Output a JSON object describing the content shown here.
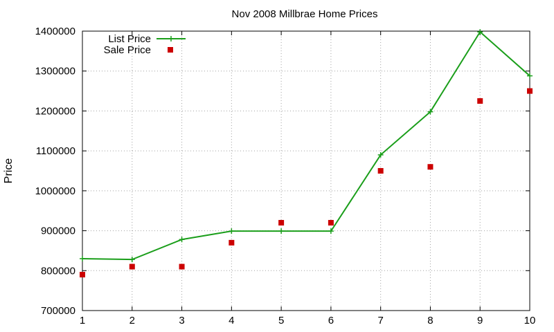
{
  "chart_data": {
    "type": "line",
    "title": "Nov 2008 Millbrae Home Prices",
    "xlabel": "",
    "ylabel": "Price",
    "xlim": [
      1,
      10
    ],
    "ylim": [
      700000,
      1400000
    ],
    "x_ticks": [
      "1",
      "2",
      "3",
      "4",
      "5",
      "6",
      "7",
      "8",
      "9",
      "10"
    ],
    "y_ticks": [
      "700000",
      "800000",
      "900000",
      "1000000",
      "1100000",
      "1200000",
      "1300000",
      "1400000"
    ],
    "grid": true,
    "legend_position": "top-left",
    "series": [
      {
        "name": "List Price",
        "style": "line-with-plus-markers",
        "color": "#1a9e1a",
        "x": [
          1,
          2,
          3,
          4,
          5,
          6,
          7,
          8,
          9,
          10
        ],
        "values": [
          830000,
          828000,
          878000,
          899000,
          899000,
          899000,
          1090000,
          1198000,
          1398000,
          1288000
        ]
      },
      {
        "name": "Sale Price",
        "style": "square-markers",
        "color": "#cc0000",
        "x": [
          1,
          2,
          3,
          4,
          5,
          6,
          7,
          8,
          9,
          10
        ],
        "values": [
          790000,
          810000,
          810000,
          870000,
          920000,
          920000,
          1050000,
          1060000,
          1225000,
          1250000
        ]
      }
    ]
  }
}
